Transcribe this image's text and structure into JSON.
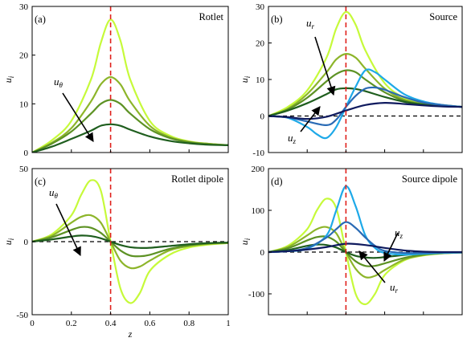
{
  "chart_data": [
    {
      "panel": "(a)",
      "title": "Rotlet",
      "type": "line",
      "ylabel": "u",
      "ylabel_sub": "i",
      "xlim": [
        0,
        1
      ],
      "ylim": [
        0,
        30
      ],
      "yticks": [
        "0",
        "10",
        "20",
        "30"
      ],
      "vline_x": 0.4,
      "annotations": [
        {
          "text": "u",
          "sub": "θ"
        }
      ],
      "series": [
        {
          "color": "#c6fa3a",
          "x": [
            0,
            0.1,
            0.2,
            0.3,
            0.35,
            0.4,
            0.45,
            0.5,
            0.6,
            0.7,
            0.8,
            0.9,
            1.0
          ],
          "y": [
            0,
            2.5,
            6.5,
            15,
            22.5,
            27.3,
            23,
            15,
            6.5,
            3.5,
            2.3,
            1.8,
            1.5
          ]
        },
        {
          "color": "#8db52a",
          "x": [
            0,
            0.1,
            0.2,
            0.3,
            0.35,
            0.4,
            0.45,
            0.5,
            0.6,
            0.7,
            0.8,
            0.9,
            1.0
          ],
          "y": [
            0,
            2,
            5,
            10.5,
            14,
            15.5,
            14,
            10.5,
            5.5,
            3.2,
            2.2,
            1.8,
            1.5
          ]
        },
        {
          "color": "#5d9224",
          "x": [
            0,
            0.1,
            0.2,
            0.3,
            0.35,
            0.4,
            0.45,
            0.5,
            0.6,
            0.7,
            0.8,
            0.9,
            1.0
          ],
          "y": [
            0,
            1.8,
            4.3,
            8,
            10,
            10.8,
            10,
            8,
            4.8,
            3,
            2.1,
            1.7,
            1.5
          ]
        },
        {
          "color": "#1f5e1e",
          "x": [
            0,
            0.1,
            0.2,
            0.3,
            0.35,
            0.4,
            0.45,
            0.5,
            0.6,
            0.7,
            0.8,
            0.9,
            1.0
          ],
          "y": [
            0,
            1.2,
            2.8,
            4.5,
            5.5,
            5.8,
            5.5,
            4.7,
            3.3,
            2.4,
            1.9,
            1.6,
            1.5
          ]
        }
      ]
    },
    {
      "panel": "(b)",
      "title": "Source",
      "type": "line",
      "ylabel": "u",
      "ylabel_sub": "i",
      "xlim": [
        0,
        1
      ],
      "ylim": [
        -10,
        30
      ],
      "yticks": [
        "-10",
        "0",
        "10",
        "20",
        "30"
      ],
      "vline_x": 0.4,
      "hline_y": 0,
      "annotations": [
        {
          "text": "u",
          "sub": "r"
        },
        {
          "text": "u",
          "sub": "z"
        }
      ],
      "series": [
        {
          "color": "#c6fa3a",
          "x": [
            0,
            0.1,
            0.2,
            0.3,
            0.35,
            0.4,
            0.45,
            0.5,
            0.6,
            0.7,
            0.8,
            0.9,
            1.0
          ],
          "y": [
            0,
            2.5,
            7,
            16,
            24,
            28.5,
            25,
            18,
            9,
            5,
            3.5,
            3,
            2.5
          ]
        },
        {
          "color": "#8db52a",
          "x": [
            0,
            0.1,
            0.2,
            0.3,
            0.35,
            0.4,
            0.45,
            0.5,
            0.6,
            0.7,
            0.8,
            0.9,
            1.0
          ],
          "y": [
            0,
            2,
            6,
            12,
            15.5,
            17,
            16,
            13,
            7.5,
            4.5,
            3.3,
            2.9,
            2.5
          ]
        },
        {
          "color": "#5d9224",
          "x": [
            0,
            0.1,
            0.2,
            0.3,
            0.35,
            0.4,
            0.45,
            0.5,
            0.6,
            0.7,
            0.8,
            0.9,
            1.0
          ],
          "y": [
            0,
            1.8,
            5,
            9.5,
            11.5,
            12.5,
            12,
            10,
            6.5,
            4.2,
            3.2,
            2.8,
            2.5
          ]
        },
        {
          "color": "#1f5e1e",
          "x": [
            0,
            0.1,
            0.2,
            0.3,
            0.35,
            0.4,
            0.45,
            0.5,
            0.6,
            0.7,
            0.8,
            0.9,
            1.0
          ],
          "y": [
            0,
            1.5,
            3.5,
            6,
            7.3,
            7.6,
            7.4,
            6.8,
            5.2,
            3.9,
            3.1,
            2.7,
            2.5
          ]
        },
        {
          "color": "#1ea9e8",
          "x": [
            0,
            0.1,
            0.2,
            0.25,
            0.3,
            0.35,
            0.4,
            0.45,
            0.5,
            0.55,
            0.6,
            0.7,
            0.8,
            0.9,
            1.0
          ],
          "y": [
            0,
            -0.5,
            -3,
            -5,
            -6,
            -3,
            2.5,
            8,
            12.5,
            12,
            10,
            6,
            4,
            3,
            2.5
          ]
        },
        {
          "color": "#2a6bb5",
          "x": [
            0,
            0.1,
            0.2,
            0.3,
            0.35,
            0.4,
            0.45,
            0.5,
            0.55,
            0.6,
            0.7,
            0.8,
            0.9,
            1.0
          ],
          "y": [
            0,
            -0.4,
            -1.5,
            -2.5,
            -1,
            2.5,
            5.5,
            7.5,
            7.8,
            7.2,
            5.2,
            3.7,
            3,
            2.5
          ]
        },
        {
          "color": "#0f1a5e",
          "x": [
            0,
            0.1,
            0.2,
            0.3,
            0.4,
            0.5,
            0.6,
            0.7,
            0.8,
            0.9,
            1.0
          ],
          "y": [
            0,
            -0.3,
            -0.8,
            -0.2,
            1.5,
            3,
            3.6,
            3.3,
            2.9,
            2.6,
            2.5
          ]
        }
      ]
    },
    {
      "panel": "(c)",
      "title": "Rotlet dipole",
      "type": "line",
      "ylabel": "u",
      "ylabel_sub": "i",
      "xlabel": "z",
      "xlim": [
        0,
        1
      ],
      "ylim": [
        -50,
        50
      ],
      "yticks": [
        "-50",
        "0",
        "50"
      ],
      "xticks": [
        "0",
        "0.2",
        "0.4",
        "0.6",
        "0.8",
        "1"
      ],
      "vline_x": 0.4,
      "hline_y": 0,
      "annotations": [
        {
          "text": "u",
          "sub": "θ"
        }
      ],
      "series": [
        {
          "color": "#c6fa3a",
          "x": [
            0,
            0.1,
            0.2,
            0.25,
            0.3,
            0.35,
            0.4,
            0.45,
            0.5,
            0.55,
            0.6,
            0.7,
            0.8,
            0.9,
            1.0
          ],
          "y": [
            0,
            5,
            18,
            32,
            42,
            35,
            0,
            -32,
            -42,
            -35,
            -20,
            -9,
            -4,
            -2,
            -1
          ]
        },
        {
          "color": "#8db52a",
          "x": [
            0,
            0.1,
            0.2,
            0.25,
            0.3,
            0.35,
            0.4,
            0.45,
            0.5,
            0.55,
            0.6,
            0.7,
            0.8,
            0.9,
            1.0
          ],
          "y": [
            0,
            4,
            13,
            17,
            18,
            13,
            0,
            -13,
            -18,
            -17,
            -13,
            -6,
            -3,
            -1.5,
            -1
          ]
        },
        {
          "color": "#5d9224",
          "x": [
            0,
            0.1,
            0.2,
            0.25,
            0.3,
            0.35,
            0.4,
            0.45,
            0.5,
            0.55,
            0.6,
            0.7,
            0.8,
            0.9,
            1.0
          ],
          "y": [
            0,
            3,
            8,
            10,
            9.5,
            6,
            0,
            -6,
            -9.5,
            -10,
            -9,
            -5,
            -2.5,
            -1.2,
            -0.8
          ]
        },
        {
          "color": "#1f5e1e",
          "x": [
            0,
            0.1,
            0.2,
            0.25,
            0.3,
            0.35,
            0.4,
            0.45,
            0.5,
            0.55,
            0.6,
            0.7,
            0.8,
            0.9,
            1.0
          ],
          "y": [
            0,
            1.5,
            3.5,
            4.2,
            3.8,
            2.3,
            0,
            -2.3,
            -3.8,
            -4.3,
            -4.2,
            -3,
            -1.8,
            -1,
            -0.6
          ]
        }
      ]
    },
    {
      "panel": "(d)",
      "title": "Source dipole",
      "type": "line",
      "ylabel": "u",
      "ylabel_sub": "i",
      "xlim": [
        0,
        1
      ],
      "ylim": [
        -150,
        200
      ],
      "yticks": [
        "-100",
        "0",
        "100",
        "200"
      ],
      "vline_x": 0.4,
      "hline_y": 0,
      "annotations": [
        {
          "text": "u",
          "sub": "z"
        },
        {
          "text": "u",
          "sub": "r"
        }
      ],
      "series": [
        {
          "color": "#c6fa3a",
          "x": [
            0,
            0.1,
            0.2,
            0.25,
            0.3,
            0.35,
            0.4,
            0.45,
            0.5,
            0.55,
            0.6,
            0.7,
            0.8,
            0.9,
            1.0
          ],
          "y": [
            0,
            15,
            55,
            100,
            128,
            105,
            0,
            -100,
            -125,
            -100,
            -55,
            -20,
            -8,
            -3,
            -1
          ]
        },
        {
          "color": "#8db52a",
          "x": [
            0,
            0.1,
            0.2,
            0.25,
            0.3,
            0.35,
            0.4,
            0.45,
            0.5,
            0.55,
            0.6,
            0.7,
            0.8,
            0.9,
            1.0
          ],
          "y": [
            0,
            12,
            40,
            55,
            60,
            45,
            0,
            -40,
            -60,
            -57,
            -43,
            -18,
            -7,
            -3,
            -1
          ]
        },
        {
          "color": "#5d9224",
          "x": [
            0,
            0.1,
            0.2,
            0.25,
            0.3,
            0.35,
            0.4,
            0.45,
            0.5,
            0.55,
            0.6,
            0.7,
            0.8,
            0.9,
            1.0
          ],
          "y": [
            0,
            9,
            28,
            36,
            37,
            25,
            0,
            -22,
            -33,
            -33,
            -27,
            -14,
            -6,
            -2.5,
            -1
          ]
        },
        {
          "color": "#1f5e1e",
          "x": [
            0,
            0.1,
            0.2,
            0.25,
            0.3,
            0.35,
            0.4,
            0.45,
            0.5,
            0.55,
            0.6,
            0.7,
            0.8,
            0.9,
            1.0
          ],
          "y": [
            0,
            5,
            15,
            18,
            17,
            11,
            0,
            -9,
            -13,
            -14,
            -12,
            -7,
            -3.5,
            -1.5,
            -0.6
          ]
        },
        {
          "color": "#1ea9e8",
          "x": [
            0,
            0.1,
            0.2,
            0.3,
            0.35,
            0.4,
            0.45,
            0.5,
            0.55,
            0.6,
            0.7,
            0.8,
            0.9,
            1.0
          ],
          "y": [
            0,
            2,
            8,
            40,
            100,
            158,
            110,
            40,
            10,
            -2,
            -6,
            -4,
            -2,
            -1
          ]
        },
        {
          "color": "#2a6bb5",
          "x": [
            0,
            0.1,
            0.2,
            0.3,
            0.35,
            0.4,
            0.45,
            0.5,
            0.55,
            0.6,
            0.7,
            0.8,
            0.9,
            1.0
          ],
          "y": [
            0,
            2,
            10,
            35,
            55,
            72,
            58,
            35,
            15,
            3,
            -2,
            -2,
            -1,
            -0.5
          ]
        },
        {
          "color": "#0f1a5e",
          "x": [
            0,
            0.1,
            0.2,
            0.3,
            0.4,
            0.5,
            0.6,
            0.7,
            0.8,
            0.9,
            1.0
          ],
          "y": [
            0,
            2,
            6,
            12,
            20,
            17,
            10,
            4,
            1,
            0,
            0
          ]
        }
      ]
    }
  ]
}
